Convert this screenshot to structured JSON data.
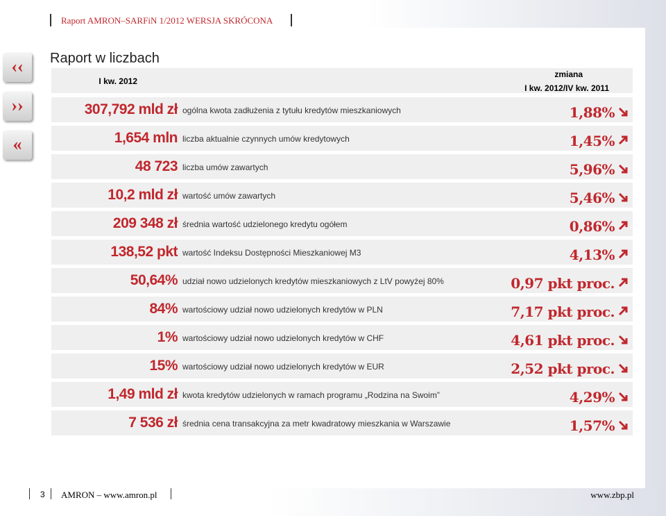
{
  "header": {
    "title": "Raport AMRON–SARFiN 1/2012 WERSJA SKRÓCONA"
  },
  "section": {
    "title": "Raport w liczbach"
  },
  "table": {
    "header": {
      "period": "I kw. 2012",
      "change": "zmiana",
      "change_period": "I kw. 2012/IV kw. 2011"
    },
    "rows": [
      {
        "value": "307,792 mld zł",
        "label": "ogólna kwota zadłużenia z tytułu kredytów mieszkaniowych",
        "change": "1,88%",
        "trend": "down"
      },
      {
        "value": "1,654 mln",
        "label": "liczba aktualnie czynnych umów kredytowych",
        "change": "1,45%",
        "trend": "up"
      },
      {
        "value": "48 723",
        "label": "liczba umów zawartych",
        "change": "5,96%",
        "trend": "down"
      },
      {
        "value": "10,2 mld zł",
        "label": "wartość umów zawartych",
        "change": "5,46%",
        "trend": "down"
      },
      {
        "value": "209 348 zł",
        "label": "średnia wartość udzielonego kredytu ogółem",
        "change": "0,86%",
        "trend": "up"
      },
      {
        "value": "138,52 pkt",
        "label": "wartość Indeksu Dostępności Mieszkaniowej M3",
        "change": "4,13%",
        "trend": "up"
      },
      {
        "value": "50,64%",
        "label": "udział nowo udzielonych kredytów mieszkaniowych z LtV powyżej 80%",
        "change": "0,97 pkt proc.",
        "trend": "up"
      },
      {
        "value": "84%",
        "label": "wartościowy udział nowo udzielonych kredytów w PLN",
        "change": "7,17 pkt proc.",
        "trend": "up"
      },
      {
        "value": "1%",
        "label": "wartościowy udział nowo udzielonych kredytów w CHF",
        "change": "4,61 pkt proc.",
        "trend": "down"
      },
      {
        "value": "15%",
        "label": "wartościowy udział nowo udzielonych kredytów w EUR",
        "change": "2,52 pkt proc.",
        "trend": "down"
      },
      {
        "value": "1,49 mld zł",
        "label": "kwota kredytów udzielonych w ramach programu „Rodzina na Swoim”",
        "change": "4,29%",
        "trend": "down"
      },
      {
        "value": "7 536 zł",
        "label": "średnia cena transakcyjna za metr kwadratowy mieszkania w Warszawie",
        "change": "1,57%",
        "trend": "down"
      }
    ]
  },
  "footer": {
    "page": "3",
    "left": "AMRON – www.amron.pl",
    "right": "www.zbp.pl"
  }
}
